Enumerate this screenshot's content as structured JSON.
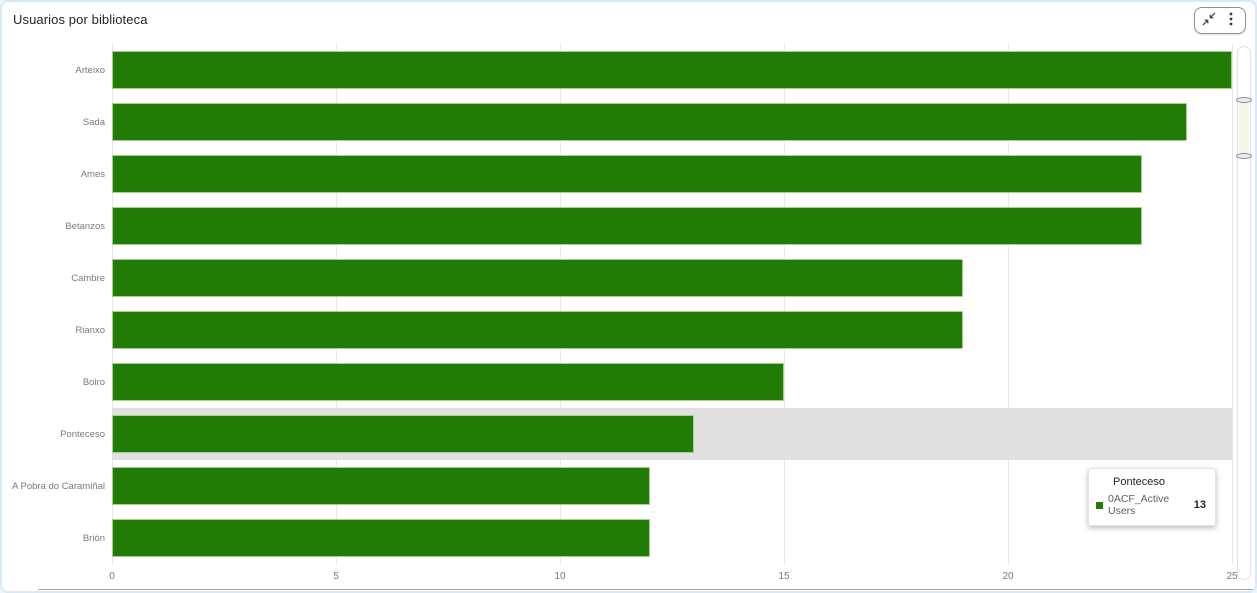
{
  "header": {
    "title": "Usuarios por biblioteca"
  },
  "controls": {
    "collapse_label": "Exit focus mode",
    "more_options_label": "More options"
  },
  "chart_data": {
    "type": "bar",
    "orientation": "horizontal",
    "title": "Usuarios por biblioteca",
    "categories": [
      "Arteixo",
      "Sada",
      "Ames",
      "Betanzos",
      "Cambre",
      "Rianxo",
      "Boiro",
      "Ponteceso",
      "A Pobra do Caramiñal",
      "Brión"
    ],
    "series": [
      {
        "name": "0ACF_Active Users",
        "values": [
          25,
          24,
          23,
          23,
          19,
          19,
          15,
          13,
          12,
          12
        ],
        "color": "#217c05"
      }
    ],
    "xlabel": "",
    "ylabel": "",
    "xlim": [
      0,
      25
    ],
    "x_ticks": [
      0,
      5,
      10,
      15,
      20,
      25
    ],
    "grid": true,
    "legend_position": "none",
    "highlighted_category": "Ponteceso"
  },
  "tooltip": {
    "title": "Ponteceso",
    "series_label": "0ACF_Active Users",
    "value": "13",
    "swatch_color": "#217c05"
  },
  "colors": {
    "bar": "#217c05",
    "bar_border": "#a9d08e",
    "highlight_row": "#e0e0e0",
    "grid_line": "#e7e7e7",
    "axis_text": "#7a7a7a",
    "title_text": "#252423",
    "card_border": "#d9e9f7",
    "slider_thumb": "#f6f6e4"
  }
}
